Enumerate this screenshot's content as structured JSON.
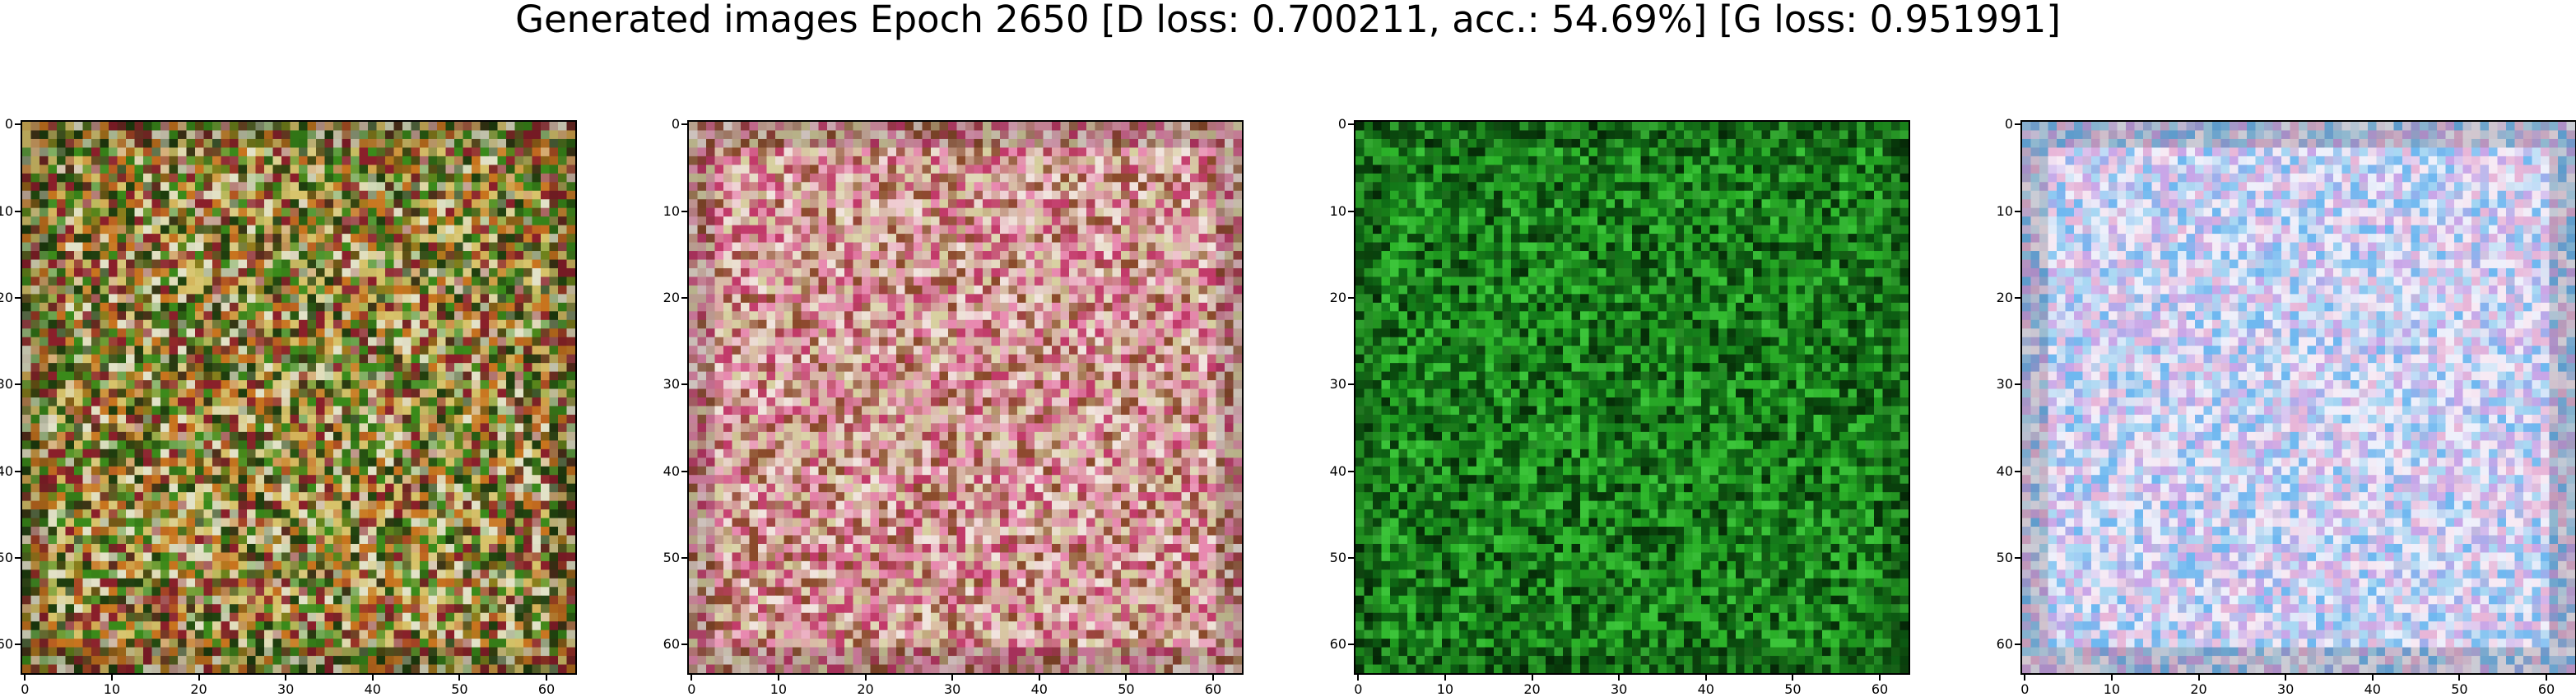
{
  "figure": {
    "title": "Generated images Epoch 2650 [D loss: 0.700211, acc.: 54.69%] [G loss: 0.951991]"
  },
  "axes": {
    "x_ticks": [
      "0",
      "10",
      "20",
      "30",
      "40",
      "50",
      "60"
    ],
    "y_ticks": [
      "0",
      "10",
      "20",
      "30",
      "40",
      "50",
      "60"
    ],
    "range": [
      0,
      64
    ]
  },
  "panels": [
    {
      "name": "generated-sample-1",
      "palette": [
        "#3a8a1a",
        "#c8741e",
        "#8a1f2a",
        "#1f3d0e",
        "#d7c36a",
        "#e2e2c8"
      ]
    },
    {
      "name": "generated-sample-2",
      "palette": [
        "#d9b7a8",
        "#c23a6a",
        "#f1e4de",
        "#8a4a2a",
        "#d7d0a0",
        "#e889b0"
      ]
    },
    {
      "name": "generated-sample-3",
      "palette": [
        "#1f9a1f",
        "#0f6d16",
        "#062e08",
        "#2db52a",
        "#0a4a0e",
        "#3cc53a"
      ]
    },
    {
      "name": "generated-sample-4",
      "palette": [
        "#eef0fb",
        "#e8b6d8",
        "#a9d8f3",
        "#f7eaf4",
        "#c9a6e8",
        "#6fb8f0"
      ]
    }
  ]
}
